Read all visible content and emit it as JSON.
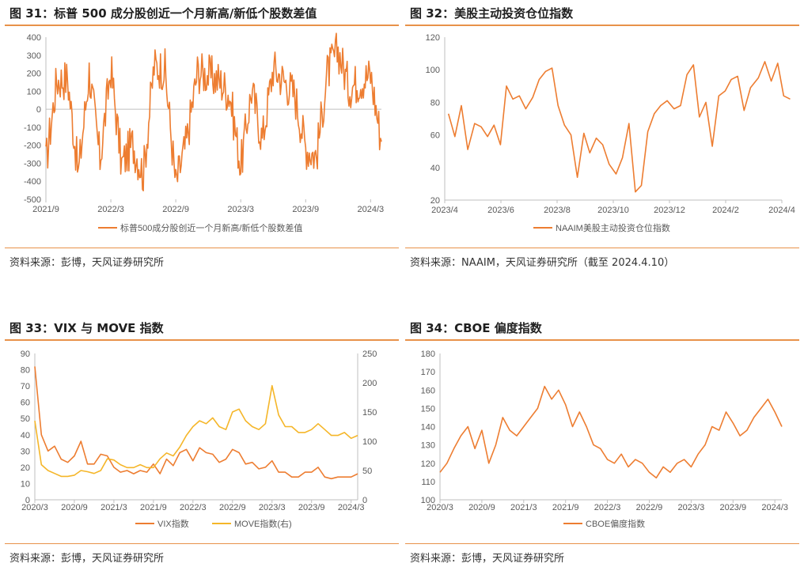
{
  "panels": [
    {
      "title": "图 31：标普 500 成分股创近一个月新高/新低个股数差值",
      "source": "资料来源：彭博，天风证券研究所"
    },
    {
      "title": "图 32：美股主动投资仓位指数",
      "source": "资料来源：NAAIM，天风证券研究所（截至 2024.4.10）"
    },
    {
      "title": "图 33：VIX 与 MOVE 指数",
      "source": "资料来源：彭博，天风证券研究所"
    },
    {
      "title": "图 34：CBOE 偏度指数",
      "source": "资料来源：彭博，天风证券研究所"
    }
  ],
  "colors": {
    "orange": "#ed7d31",
    "yellow": "#f5b629",
    "rule": "#e8924a",
    "axis": "#bfbfbf"
  },
  "chart_data": [
    {
      "type": "line",
      "x_ticks": [
        "2021/9",
        "2022/3",
        "2022/9",
        "2023/3",
        "2023/9",
        "2024/3"
      ],
      "x_range": [
        "2021/9",
        "2024/4"
      ],
      "ylim": [
        -500,
        400
      ],
      "y_ticks": [
        -500,
        -400,
        -300,
        -200,
        -100,
        0,
        100,
        200,
        300,
        400
      ],
      "legend_position": "bottom",
      "series": [
        {
          "name": "标普500成分股创近一个月新高/新低个股数差值",
          "color": "#ed7d31",
          "x": [
            "2021/9",
            "2021/10",
            "2021/11",
            "2021/12",
            "2022/1",
            "2022/2",
            "2022/3",
            "2022/4",
            "2022/5",
            "2022/6",
            "2022/7",
            "2022/8",
            "2022/9",
            "2022/10",
            "2022/11",
            "2022/12",
            "2023/1",
            "2023/2",
            "2023/3",
            "2023/4",
            "2023/5",
            "2023/6",
            "2023/7",
            "2023/8",
            "2023/9",
            "2023/10",
            "2023/11",
            "2023/12",
            "2024/1",
            "2024/2",
            "2024/3",
            "2024/4"
          ],
          "values": [
            -300,
            160,
            170,
            -360,
            210,
            -280,
            230,
            -310,
            -190,
            -360,
            240,
            220,
            -420,
            -180,
            210,
            190,
            160,
            80,
            -320,
            110,
            -170,
            230,
            160,
            80,
            -210,
            -260,
            200,
            330,
            120,
            160,
            190,
            -180
          ]
        }
      ]
    },
    {
      "type": "line",
      "x_ticks": [
        "2023/4",
        "2023/6",
        "2023/8",
        "2023/10",
        "2023/12",
        "2024/2",
        "2024/4"
      ],
      "x_range": [
        "2023/4",
        "2024/4"
      ],
      "ylim": [
        20,
        120
      ],
      "y_ticks": [
        20,
        40,
        60,
        80,
        100,
        120
      ],
      "legend_position": "bottom",
      "series": [
        {
          "name": "NAAIM美股主动投资仓位指数",
          "color": "#ed7d31",
          "x": [
            "2023/4/5",
            "2023/4/12",
            "2023/4/19",
            "2023/4/26",
            "2023/5/3",
            "2023/5/10",
            "2023/5/17",
            "2023/5/24",
            "2023/5/31",
            "2023/6/7",
            "2023/6/14",
            "2023/6/21",
            "2023/6/28",
            "2023/7/5",
            "2023/7/12",
            "2023/7/19",
            "2023/7/26",
            "2023/8/2",
            "2023/8/9",
            "2023/8/16",
            "2023/8/23",
            "2023/8/30",
            "2023/9/6",
            "2023/9/13",
            "2023/9/20",
            "2023/9/27",
            "2023/10/4",
            "2023/10/11",
            "2023/10/18",
            "2023/10/25",
            "2023/11/1",
            "2023/11/8",
            "2023/11/15",
            "2023/11/22",
            "2023/11/29",
            "2023/12/6",
            "2023/12/13",
            "2023/12/20",
            "2023/12/27",
            "2024/1/3",
            "2024/1/10",
            "2024/1/17",
            "2024/1/24",
            "2024/1/31",
            "2024/2/7",
            "2024/2/14",
            "2024/2/21",
            "2024/2/28",
            "2024/3/6",
            "2024/3/13",
            "2024/3/20",
            "2024/3/27",
            "2024/4/3",
            "2024/4/10"
          ],
          "values": [
            73,
            59,
            78,
            51,
            67,
            65,
            59,
            66,
            54,
            90,
            82,
            84,
            76,
            83,
            94,
            99,
            101,
            78,
            66,
            60,
            34,
            61,
            49,
            58,
            54,
            42,
            36,
            46,
            67,
            25,
            29,
            62,
            73,
            78,
            81,
            76,
            78,
            97,
            103,
            71,
            80,
            53,
            84,
            87,
            94,
            96,
            75,
            89,
            95,
            105,
            93,
            104,
            84,
            82
          ]
        }
      ]
    },
    {
      "type": "line",
      "x_ticks": [
        "2020/3",
        "2020/9",
        "2021/3",
        "2021/9",
        "2022/3",
        "2022/9",
        "2023/3",
        "2023/9",
        "2024/3"
      ],
      "x_range": [
        "2020/3",
        "2024/4"
      ],
      "ylim": [
        0,
        90
      ],
      "y_ticks": [
        0,
        10,
        20,
        30,
        40,
        50,
        60,
        70,
        80,
        90
      ],
      "y2lim": [
        0,
        250
      ],
      "y2_ticks": [
        0,
        50,
        100,
        150,
        200,
        250
      ],
      "legend_position": "bottom",
      "series": [
        {
          "name": "VIX指数",
          "axis": "left",
          "color": "#ed7d31",
          "x": [
            "2020/3",
            "2020/4",
            "2020/5",
            "2020/6",
            "2020/7",
            "2020/8",
            "2020/9",
            "2020/10",
            "2020/11",
            "2020/12",
            "2021/1",
            "2021/2",
            "2021/3",
            "2021/4",
            "2021/5",
            "2021/6",
            "2021/7",
            "2021/8",
            "2021/9",
            "2021/10",
            "2021/11",
            "2021/12",
            "2022/1",
            "2022/2",
            "2022/3",
            "2022/4",
            "2022/5",
            "2022/6",
            "2022/7",
            "2022/8",
            "2022/9",
            "2022/10",
            "2022/11",
            "2022/12",
            "2023/1",
            "2023/2",
            "2023/3",
            "2023/4",
            "2023/5",
            "2023/6",
            "2023/7",
            "2023/8",
            "2023/9",
            "2023/10",
            "2023/11",
            "2023/12",
            "2024/1",
            "2024/2",
            "2024/3",
            "2024/4"
          ],
          "values": [
            82,
            40,
            30,
            33,
            25,
            23,
            27,
            36,
            22,
            22,
            28,
            27,
            20,
            17,
            18,
            16,
            18,
            17,
            22,
            16,
            25,
            21,
            29,
            31,
            24,
            32,
            29,
            28,
            23,
            25,
            31,
            29,
            22,
            23,
            19,
            20,
            24,
            17,
            17,
            14,
            14,
            17,
            17,
            20,
            14,
            13,
            14,
            14,
            14,
            16
          ]
        },
        {
          "name": "MOVE指数(右)",
          "axis": "right",
          "color": "#f5b629",
          "x": [
            "2020/3",
            "2020/4",
            "2020/5",
            "2020/6",
            "2020/7",
            "2020/8",
            "2020/9",
            "2020/10",
            "2020/11",
            "2020/12",
            "2021/1",
            "2021/2",
            "2021/3",
            "2021/4",
            "2021/5",
            "2021/6",
            "2021/7",
            "2021/8",
            "2021/9",
            "2021/10",
            "2021/11",
            "2021/12",
            "2022/1",
            "2022/2",
            "2022/3",
            "2022/4",
            "2022/5",
            "2022/6",
            "2022/7",
            "2022/8",
            "2022/9",
            "2022/10",
            "2022/11",
            "2022/12",
            "2023/1",
            "2023/2",
            "2023/3",
            "2023/4",
            "2023/5",
            "2023/6",
            "2023/7",
            "2023/8",
            "2023/9",
            "2023/10",
            "2023/11",
            "2023/12",
            "2024/1",
            "2024/2",
            "2024/3",
            "2024/4"
          ],
          "values": [
            135,
            60,
            50,
            45,
            40,
            40,
            42,
            50,
            48,
            45,
            50,
            70,
            68,
            60,
            55,
            55,
            60,
            55,
            55,
            70,
            80,
            75,
            90,
            110,
            125,
            135,
            130,
            140,
            125,
            120,
            150,
            155,
            135,
            125,
            120,
            130,
            195,
            145,
            125,
            125,
            115,
            115,
            120,
            130,
            120,
            110,
            110,
            115,
            105,
            110
          ]
        }
      ]
    },
    {
      "type": "line",
      "x_ticks": [
        "2020/3",
        "2020/9",
        "2021/3",
        "2021/9",
        "2022/3",
        "2022/9",
        "2023/3",
        "2023/9",
        "2024/3"
      ],
      "x_range": [
        "2020/3",
        "2024/4"
      ],
      "ylim": [
        100,
        180
      ],
      "y_ticks": [
        100,
        110,
        120,
        130,
        140,
        150,
        160,
        170,
        180
      ],
      "legend_position": "bottom",
      "series": [
        {
          "name": "CBOE偏度指数",
          "color": "#ed7d31",
          "x": [
            "2020/3",
            "2020/4",
            "2020/5",
            "2020/6",
            "2020/7",
            "2020/8",
            "2020/9",
            "2020/10",
            "2020/11",
            "2020/12",
            "2021/1",
            "2021/2",
            "2021/3",
            "2021/4",
            "2021/5",
            "2021/6",
            "2021/7",
            "2021/8",
            "2021/9",
            "2021/10",
            "2021/11",
            "2021/12",
            "2022/1",
            "2022/2",
            "2022/3",
            "2022/4",
            "2022/5",
            "2022/6",
            "2022/7",
            "2022/8",
            "2022/9",
            "2022/10",
            "2022/11",
            "2022/12",
            "2023/1",
            "2023/2",
            "2023/3",
            "2023/4",
            "2023/5",
            "2023/6",
            "2023/7",
            "2023/8",
            "2023/9",
            "2023/10",
            "2023/11",
            "2023/12",
            "2024/1",
            "2024/2",
            "2024/3",
            "2024/4"
          ],
          "values": [
            115,
            120,
            128,
            135,
            140,
            128,
            138,
            120,
            130,
            145,
            138,
            135,
            140,
            145,
            150,
            162,
            155,
            160,
            152,
            140,
            148,
            140,
            130,
            128,
            122,
            120,
            125,
            118,
            122,
            120,
            115,
            112,
            118,
            115,
            120,
            122,
            118,
            125,
            130,
            140,
            138,
            148,
            142,
            135,
            138,
            145,
            150,
            155,
            148,
            140
          ]
        }
      ]
    }
  ]
}
